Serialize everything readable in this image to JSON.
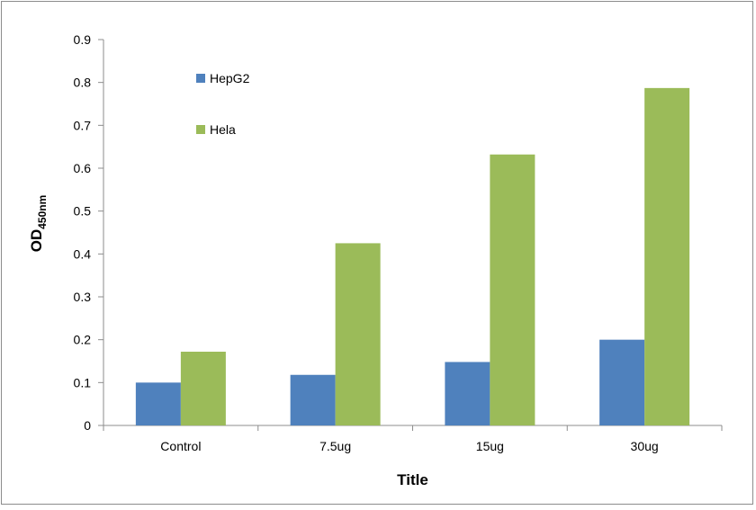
{
  "chart_data": {
    "type": "bar",
    "title": "",
    "xlabel": "Title",
    "ylabel": {
      "main": "OD",
      "subscript": "450nm"
    },
    "categories": [
      "Control",
      "7.5ug",
      "15ug",
      "30ug"
    ],
    "series": [
      {
        "name": "HepG2",
        "color": "#4f81bd",
        "values": [
          0.1,
          0.118,
          0.148,
          0.2
        ]
      },
      {
        "name": "Hela",
        "color": "#9bbb59",
        "values": [
          0.172,
          0.425,
          0.632,
          0.787
        ]
      }
    ],
    "ylim": [
      0,
      0.9
    ],
    "yticks": [
      "0",
      "0.1",
      "0.2",
      "0.3",
      "0.4",
      "0.5",
      "0.6",
      "0.7",
      "0.8",
      "0.9"
    ],
    "grid": false,
    "legend_position": "top-left inside plot"
  }
}
